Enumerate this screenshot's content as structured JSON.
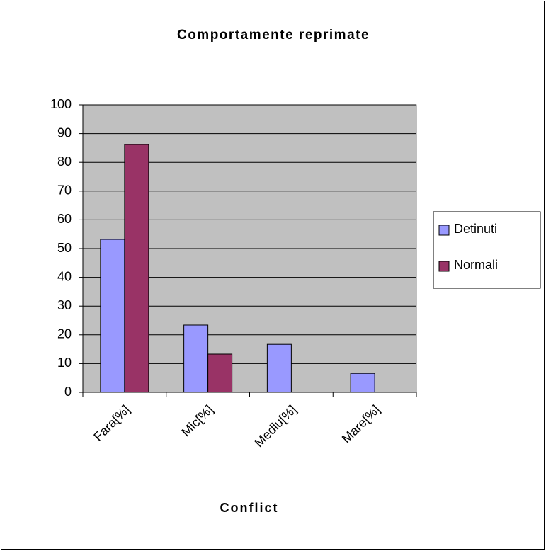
{
  "chart_data": {
    "type": "bar",
    "title": "Comportamente reprimate",
    "x_label": "Conflict",
    "categories": [
      "Fara[%]",
      "Mic[%]",
      "Mediu[%]",
      "Mare[%]"
    ],
    "series": [
      {
        "name": "Detinuti",
        "color": "#9999ff",
        "values": [
          53.2,
          23.4,
          16.7,
          6.6
        ]
      },
      {
        "name": "Normali",
        "color": "#993366",
        "values": [
          86.2,
          13.3,
          0,
          0
        ]
      }
    ],
    "ylim": [
      0,
      100
    ],
    "yticks": [
      0,
      10,
      20,
      30,
      40,
      50,
      60,
      70,
      80,
      90,
      100
    ],
    "grid": true,
    "legend": "right",
    "plot_background": "#c0c0c0"
  }
}
